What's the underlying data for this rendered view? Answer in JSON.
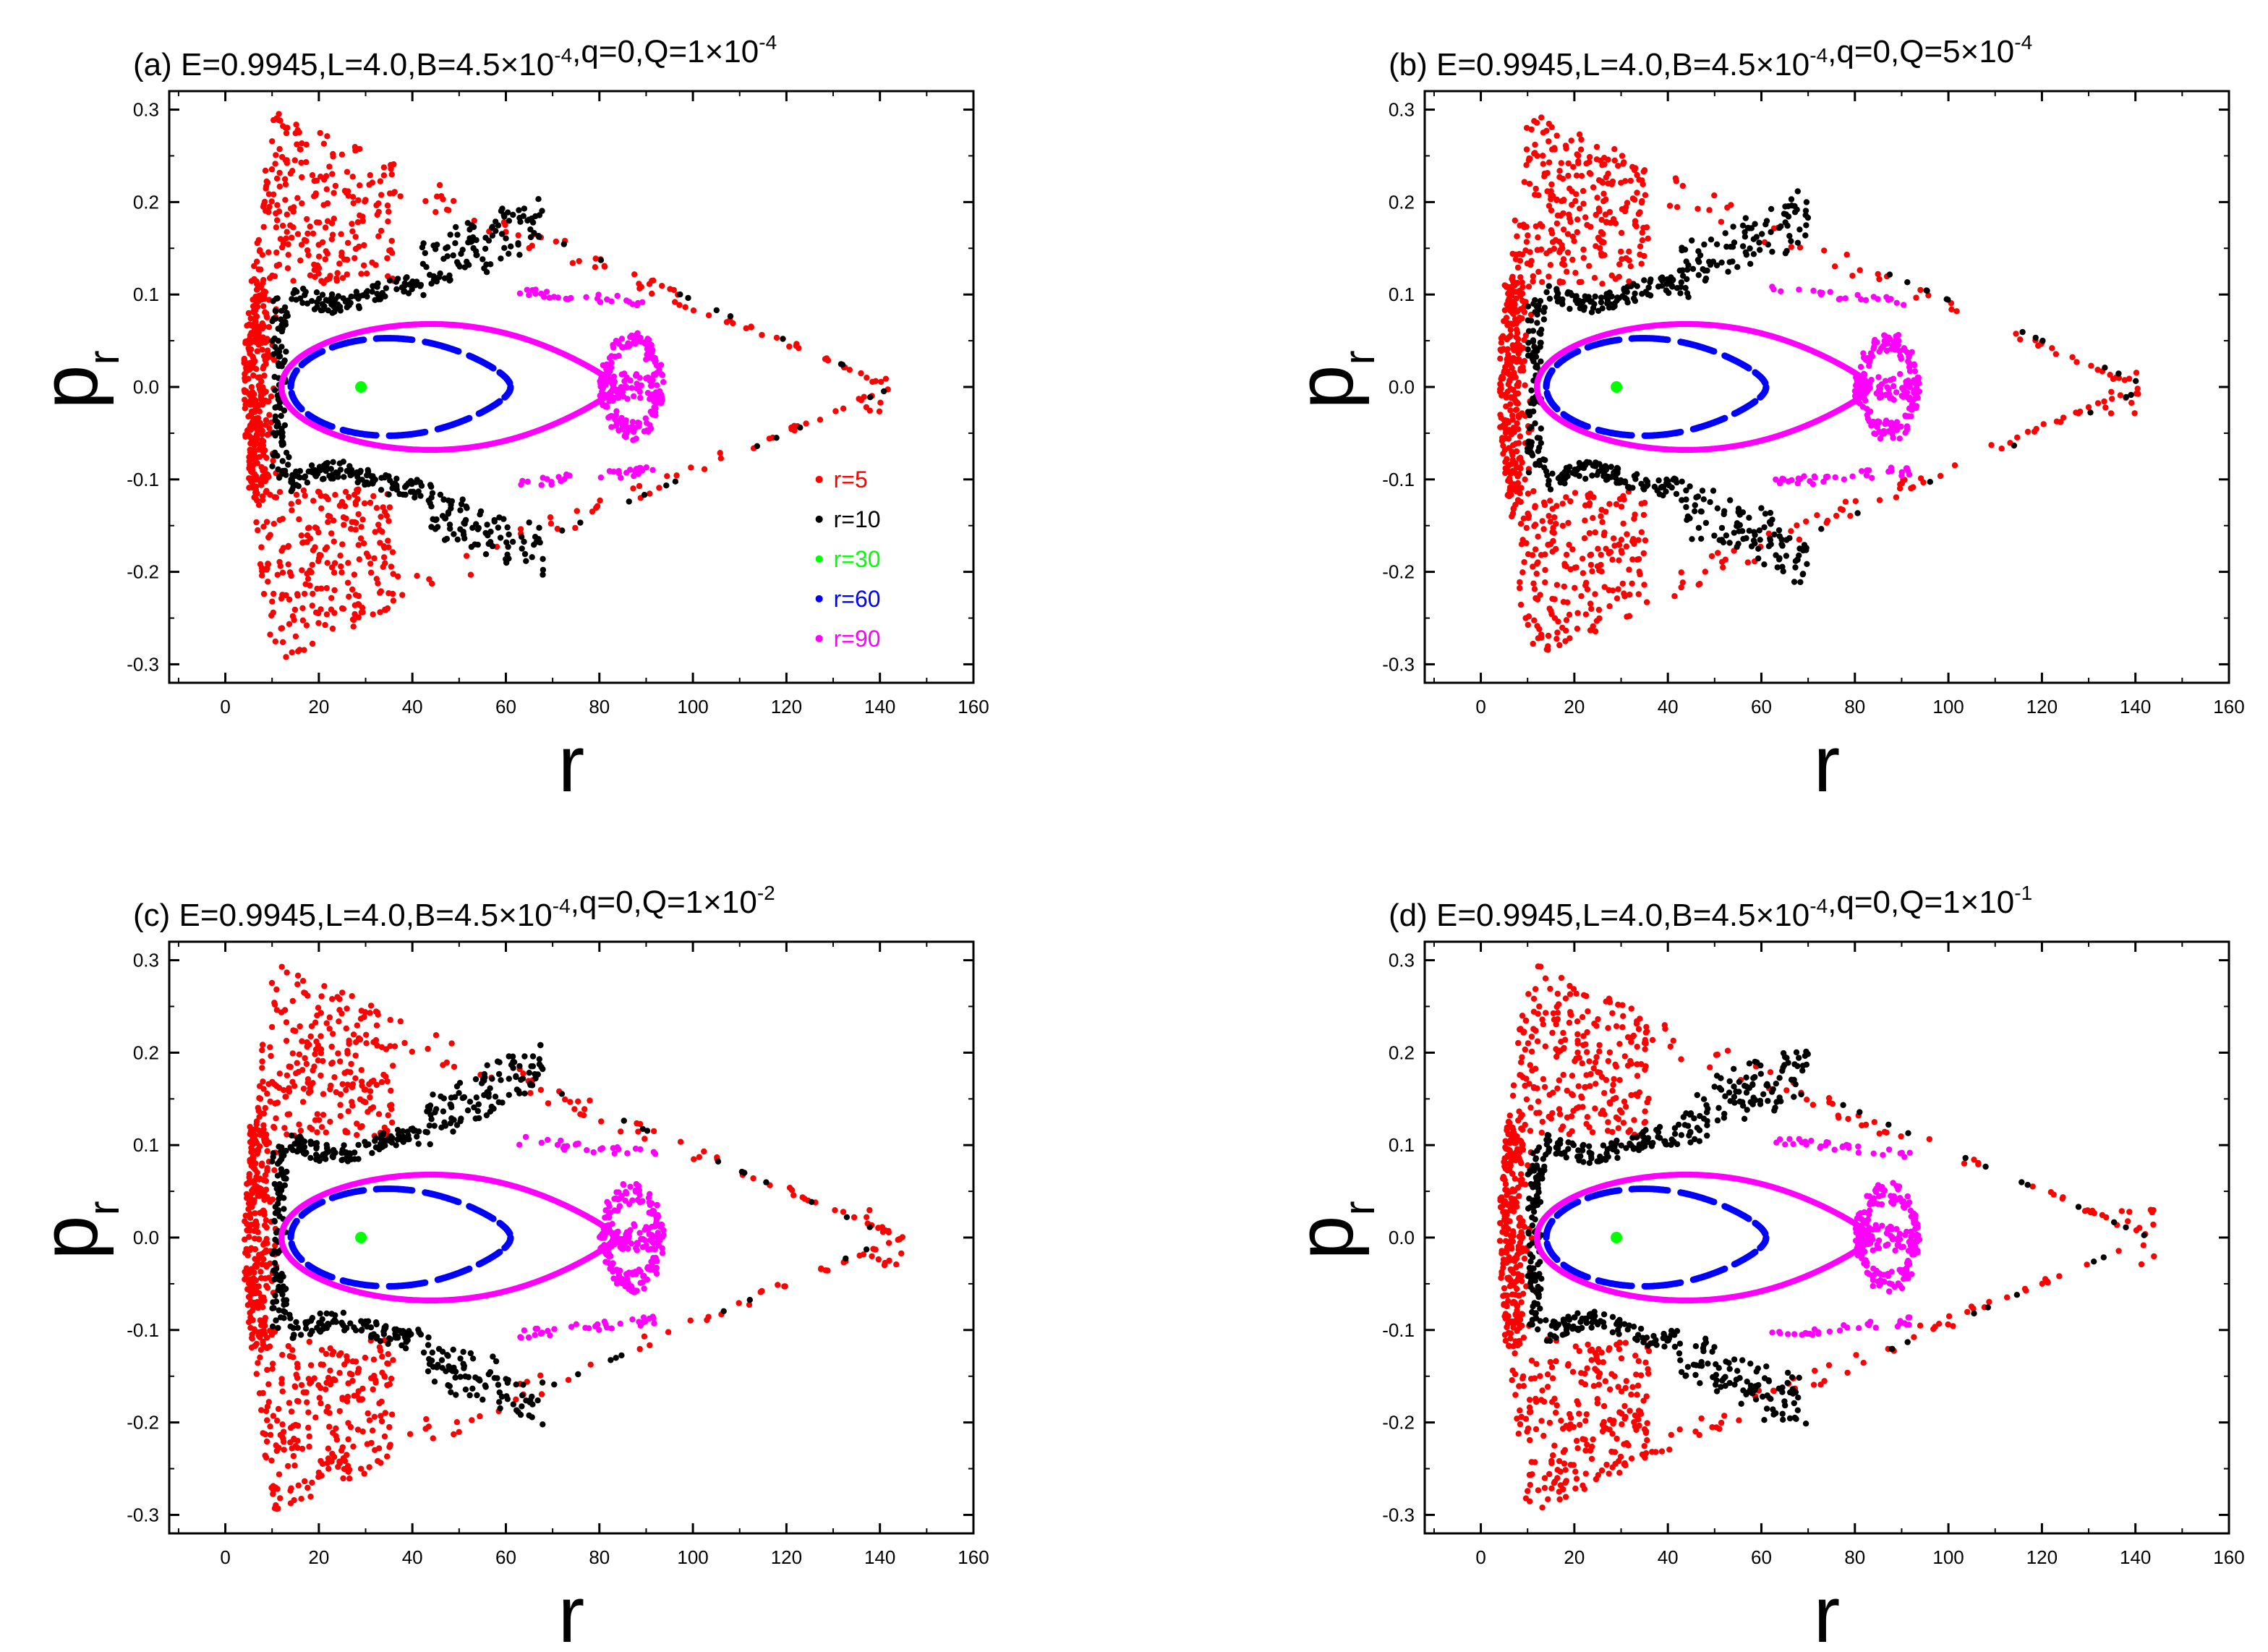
{
  "figure": {
    "description_free": true,
    "legend": [
      {
        "label": "r=5",
        "color": "#ff0000"
      },
      {
        "label": "r=10",
        "color": "#000000"
      },
      {
        "label": "r=30",
        "color": "#00ff00"
      },
      {
        "label": "r=60",
        "color": "#0000ff"
      },
      {
        "label": "r=90",
        "color": "#ff00ff"
      }
    ]
  },
  "chart_data": [
    {
      "type": "scatter",
      "panel": "a",
      "title_prefix": "(a) E=0.9945,L=4.0,B=4.5×10",
      "title_exp_B": "-4",
      "title_middle": ",q=0,Q=1×10",
      "title_exp_Q": "-4",
      "xlabel": "r",
      "ylabel_main": "p",
      "ylabel_sub": "r",
      "xlim": [
        -12,
        160
      ],
      "ylim": [
        -0.32,
        0.32
      ],
      "xticks": [
        "0",
        "20",
        "40",
        "60",
        "80",
        "100",
        "120",
        "140",
        "160"
      ],
      "xtick_values": [
        0,
        20,
        40,
        60,
        80,
        100,
        120,
        140,
        160
      ],
      "yticks": [
        "0.3",
        "0.2",
        "0.1",
        "0.0",
        "-0.1",
        "-0.2",
        "-0.3"
      ],
      "ytick_values": [
        0.3,
        0.2,
        0.1,
        0.0,
        -0.1,
        -0.2,
        -0.3
      ],
      "show_legend": true,
      "series": [
        {
          "name": "r=5",
          "color": "#ff0000",
          "kind": "chaotic_outer",
          "tip_x": 143,
          "outer_amp": 0.3,
          "inner_x": 70
        },
        {
          "name": "r=10",
          "color": "#000000",
          "kind": "chaotic_band",
          "x_max": 68,
          "tip_x": 142
        },
        {
          "name": "r=30",
          "color": "#00ff00",
          "kind": "point",
          "x": 29,
          "y": 0.0
        },
        {
          "name": "r=60",
          "color": "#0000ff",
          "kind": "dashed_loop",
          "x_min": 14,
          "x_max": 61,
          "amp": 0.055
        },
        {
          "name": "r=90",
          "color": "#ff00ff",
          "kind": "loop_with_lobes",
          "x_min": 12,
          "x_max": 93,
          "amp": 0.07
        }
      ]
    },
    {
      "type": "scatter",
      "panel": "b",
      "title_prefix": "(b) E=0.9945,L=4.0,B=4.5×10",
      "title_exp_B": "-4",
      "title_middle": ",q=0,Q=5×10",
      "title_exp_Q": "-4",
      "xlabel": "r",
      "ylabel_main": "p",
      "ylabel_sub": "r",
      "xlim": [
        -12,
        160
      ],
      "ylim": [
        -0.32,
        0.32
      ],
      "xticks": [
        "0",
        "20",
        "40",
        "60",
        "80",
        "100",
        "120",
        "140",
        "160"
      ],
      "xtick_values": [
        0,
        20,
        40,
        60,
        80,
        100,
        120,
        140,
        160
      ],
      "yticks": [
        "0.3",
        "0.2",
        "0.1",
        "0.0",
        "-0.1",
        "-0.2",
        "-0.3"
      ],
      "ytick_values": [
        0.3,
        0.2,
        0.1,
        0.0,
        -0.1,
        -0.2,
        -0.3
      ],
      "show_legend": false,
      "series": [
        {
          "name": "r=5",
          "color": "#ff0000",
          "kind": "chaotic_outer",
          "tip_x": 141,
          "outer_amp": 0.3,
          "inner_x": 68
        },
        {
          "name": "r=10",
          "color": "#000000",
          "kind": "chaotic_band",
          "x_max": 70,
          "tip_x": 141
        },
        {
          "name": "r=30",
          "color": "#00ff00",
          "kind": "point",
          "x": 29,
          "y": 0.0
        },
        {
          "name": "r=60",
          "color": "#0000ff",
          "kind": "dashed_loop",
          "x_min": 14,
          "x_max": 61,
          "amp": 0.055
        },
        {
          "name": "r=90",
          "color": "#ff00ff",
          "kind": "loop_with_lobes",
          "x_min": 12,
          "x_max": 93,
          "amp": 0.07
        }
      ]
    },
    {
      "type": "scatter",
      "panel": "c",
      "title_prefix": "(c) E=0.9945,L=4.0,B=4.5×10",
      "title_exp_B": "-4",
      "title_middle": ",q=0,Q=1×10",
      "title_exp_Q": "-2",
      "xlabel": "r",
      "ylabel_main": "p",
      "ylabel_sub": "r",
      "xlim": [
        -12,
        160
      ],
      "ylim": [
        -0.32,
        0.32
      ],
      "xticks": [
        "0",
        "20",
        "40",
        "60",
        "80",
        "100",
        "120",
        "140",
        "160"
      ],
      "xtick_values": [
        0,
        20,
        40,
        60,
        80,
        100,
        120,
        140,
        160
      ],
      "yticks": [
        "0.3",
        "0.2",
        "0.1",
        "0.0",
        "-0.1",
        "-0.2",
        "-0.3"
      ],
      "ytick_values": [
        0.3,
        0.2,
        0.1,
        0.0,
        -0.1,
        -0.2,
        -0.3
      ],
      "show_legend": false,
      "series": [
        {
          "name": "r=5",
          "color": "#ff0000",
          "kind": "chaotic_outer",
          "tip_x": 145,
          "outer_amp": 0.3,
          "inner_x": 72
        },
        {
          "name": "r=10",
          "color": "#000000",
          "kind": "chaotic_band",
          "x_max": 68,
          "tip_x": 138
        },
        {
          "name": "r=30",
          "color": "#00ff00",
          "kind": "point",
          "x": 29,
          "y": 0.0
        },
        {
          "name": "r=60",
          "color": "#0000ff",
          "kind": "dashed_loop",
          "x_min": 14,
          "x_max": 61,
          "amp": 0.055
        },
        {
          "name": "r=90",
          "color": "#ff00ff",
          "kind": "loop_with_lobes",
          "x_min": 12,
          "x_max": 93,
          "amp": 0.07
        }
      ]
    },
    {
      "type": "scatter",
      "panel": "d",
      "title_prefix": "(d) E=0.9945,L=4.0,B=4.5×10",
      "title_exp_B": "-4",
      "title_middle": ",q=0,Q=1×10",
      "title_exp_Q": "-1",
      "xlabel": "r",
      "ylabel_main": "p",
      "ylabel_sub": "r",
      "xlim": [
        -12,
        160
      ],
      "ylim": [
        -0.32,
        0.32
      ],
      "xticks": [
        "0",
        "20",
        "40",
        "60",
        "80",
        "100",
        "120",
        "140",
        "160"
      ],
      "xtick_values": [
        0,
        20,
        40,
        60,
        80,
        100,
        120,
        140,
        160
      ],
      "yticks": [
        "0.3",
        "0.2",
        "0.1",
        "0.0",
        "-0.1",
        "-0.2",
        "-0.3"
      ],
      "ytick_values": [
        0.3,
        0.2,
        0.1,
        0.0,
        -0.1,
        -0.2,
        -0.3
      ],
      "show_legend": false,
      "series": [
        {
          "name": "r=5",
          "color": "#ff0000",
          "kind": "chaotic_outer",
          "tip_x": 144,
          "outer_amp": 0.3,
          "inner_x": 70
        },
        {
          "name": "r=10",
          "color": "#000000",
          "kind": "chaotic_band",
          "x_max": 70,
          "tip_x": 142
        },
        {
          "name": "r=30",
          "color": "#00ff00",
          "kind": "point",
          "x": 29,
          "y": 0.0
        },
        {
          "name": "r=60",
          "color": "#0000ff",
          "kind": "dashed_loop",
          "x_min": 14,
          "x_max": 61,
          "amp": 0.055
        },
        {
          "name": "r=90",
          "color": "#ff00ff",
          "kind": "loop_with_lobes",
          "x_min": 12,
          "x_max": 93,
          "amp": 0.07
        }
      ]
    }
  ]
}
